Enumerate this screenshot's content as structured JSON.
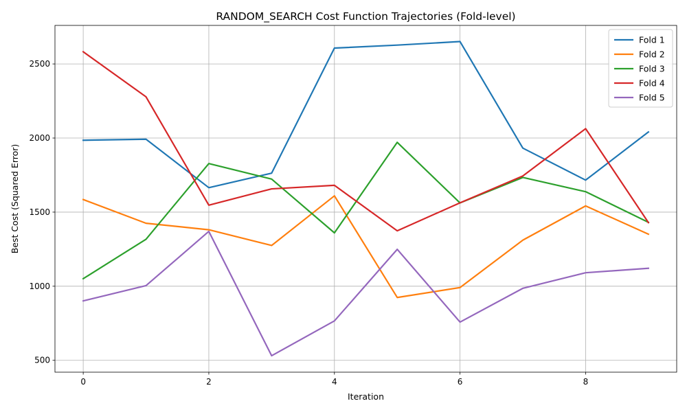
{
  "chart_data": {
    "type": "line",
    "title": "RANDOM_SEARCH Cost Function Trajectories (Fold-level)",
    "xlabel": "Iteration",
    "ylabel": "Best Cost (Squared Error)",
    "x": [
      0,
      1,
      2,
      3,
      4,
      5,
      6,
      7,
      8,
      9
    ],
    "xlim": [
      -0.45,
      9.45
    ],
    "ylim": [
      420,
      2760
    ],
    "xticks": [
      0,
      2,
      4,
      6,
      8
    ],
    "yticks": [
      500,
      1000,
      1500,
      2000,
      2500
    ],
    "grid": true,
    "legend_position": "top-right",
    "series": [
      {
        "name": "Fold 1",
        "color": "#1f77b4",
        "values": [
          1985,
          1992,
          1665,
          1763,
          2607,
          2627,
          2651,
          1932,
          1716,
          2041
        ]
      },
      {
        "name": "Fold 2",
        "color": "#ff7f0e",
        "values": [
          1585,
          1425,
          1381,
          1275,
          1610,
          924,
          991,
          1311,
          1542,
          1351
        ]
      },
      {
        "name": "Fold 3",
        "color": "#2ca02c",
        "values": [
          1051,
          1317,
          1828,
          1723,
          1360,
          1971,
          1562,
          1734,
          1638,
          1431
        ]
      },
      {
        "name": "Fold 4",
        "color": "#d62728",
        "values": [
          2582,
          2278,
          1547,
          1657,
          1681,
          1374,
          1563,
          1744,
          2063,
          1429
        ]
      },
      {
        "name": "Fold 5",
        "color": "#9467bd",
        "values": [
          901,
          1004,
          1370,
          531,
          766,
          1249,
          758,
          986,
          1091,
          1121
        ]
      }
    ]
  }
}
